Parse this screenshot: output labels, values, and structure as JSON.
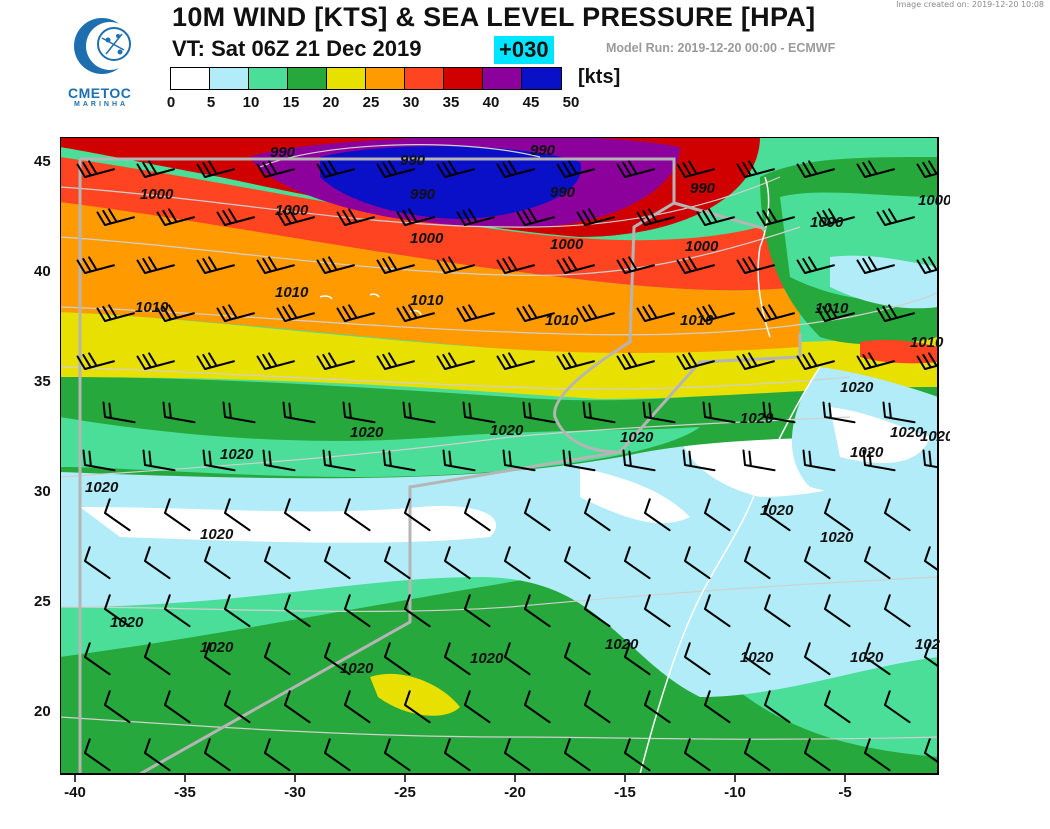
{
  "image_created": "Image created on: 2019-12-20 10:08",
  "logo": {
    "name": "CMETOC",
    "subtitle": "MARINHA"
  },
  "title": "10M WIND [KTS] & SEA LEVEL PRESSURE [HPA]",
  "valid_time": "VT:  Sat 06Z 21 Dec 2019",
  "lead_time": "+030",
  "model_run": "Model Run: 2019-12-20 00:00 - ECMWF",
  "colorbar": {
    "unit": "[kts]",
    "ticks": [
      "0",
      "5",
      "10",
      "15",
      "20",
      "25",
      "30",
      "35",
      "40",
      "45",
      "50"
    ],
    "colors": [
      "#ffffff",
      "#b2ecf9",
      "#4ade98",
      "#26a83c",
      "#e8e000",
      "#ff9a00",
      "#ff4422",
      "#d10000",
      "#8c009c",
      "#0a10c8"
    ]
  },
  "map": {
    "x_ticks": [
      "-40",
      "-35",
      "-30",
      "-25",
      "-20",
      "-15",
      "-10",
      "-5"
    ],
    "y_ticks": [
      "45",
      "40",
      "35",
      "30",
      "25",
      "20"
    ],
    "isobar_labels": [
      "990",
      "990",
      "990",
      "990",
      "990",
      "990",
      "1000",
      "1000",
      "1000",
      "1000",
      "1000",
      "1000",
      "1000",
      "1010",
      "1010",
      "1010",
      "1010",
      "1010",
      "1010",
      "1010",
      "1020",
      "1020",
      "1020",
      "1020",
      "1020",
      "1020",
      "1020",
      "1020",
      "1020",
      "1020",
      "1020",
      "1020",
      "1020",
      "1020",
      "1020",
      "1020",
      "1020",
      "1020",
      "1020",
      "1020",
      "102"
    ]
  }
}
